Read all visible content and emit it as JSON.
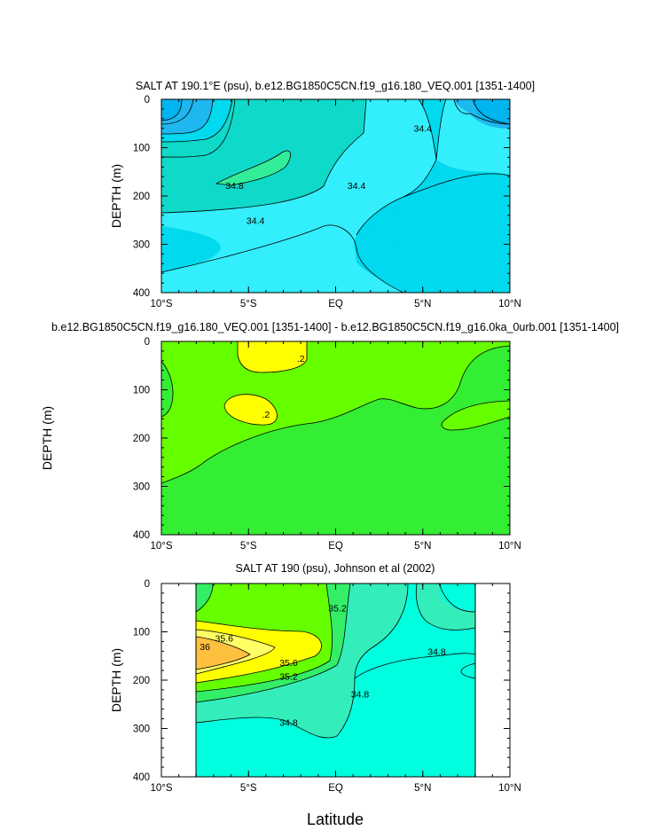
{
  "chart_data": [
    {
      "type": "contour",
      "title": "SALT AT 190.1°E (psu), b.e12.BG1850C5CN.f19_g16.180_VEQ.001 [1351-1400]",
      "xlabel": "",
      "ylabel": "DEPTH (m)",
      "xlim": [
        -10,
        10
      ],
      "ylim": [
        400,
        0
      ],
      "x_ticks": [
        -10,
        -5,
        0,
        5,
        10
      ],
      "x_tick_labels": [
        "10°S",
        "5°S",
        "EQ",
        "5°N",
        "10°N"
      ],
      "y_ticks": [
        0,
        100,
        200,
        300,
        400
      ],
      "y_tick_labels": [
        "0",
        "100",
        "200",
        "300",
        "400"
      ],
      "contour_labels": [
        {
          "text": "34.8",
          "x": -5.8,
          "y": 178
        },
        {
          "text": "34.4",
          "x": -4.6,
          "y": 250
        },
        {
          "text": "34.4",
          "x": 1.2,
          "y": 178
        },
        {
          "text": "34.4",
          "x": 5.0,
          "y": 60
        }
      ],
      "fills": [
        "#1fb7ef",
        "#33eefc",
        "#00d9ee",
        "#0fd9e6"
      ]
    },
    {
      "type": "contour",
      "title": "b.e12.BG1850C5CN.f19_g16.180_VEQ.001 [1351-1400] - b.e12.BG1850C5CN.f19_g16.0ka_0urb.001 [1351-1400]",
      "xlabel": "",
      "ylabel": "DEPTH (m)",
      "xlim": [
        -10,
        10
      ],
      "ylim": [
        400,
        0
      ],
      "x_ticks": [
        -10,
        -5,
        0,
        5,
        10
      ],
      "x_tick_labels": [
        "10°S",
        "5°S",
        "EQ",
        "5°N",
        "10°N"
      ],
      "y_ticks": [
        0,
        100,
        200,
        300,
        400
      ],
      "y_tick_labels": [
        "0",
        "100",
        "200",
        "300",
        "400"
      ],
      "contour_labels": [
        {
          "text": ".2",
          "x": -2.0,
          "y": 35
        },
        {
          "text": ".2",
          "x": -4.0,
          "y": 150
        }
      ],
      "fills": [
        "#66ff00",
        "#33ee33",
        "#ffff00"
      ]
    },
    {
      "type": "contour",
      "title": "SALT AT 190 (psu), Johnson et al (2002)",
      "xlabel": "Latitude",
      "ylabel": "DEPTH (m)",
      "xlim": [
        -10,
        10
      ],
      "ylim": [
        400,
        0
      ],
      "x_ticks": [
        -10,
        -5,
        0,
        5,
        10
      ],
      "x_tick_labels": [
        "10°S",
        "5°S",
        "EQ",
        "5°N",
        "10°N"
      ],
      "y_ticks": [
        0,
        100,
        200,
        300,
        400
      ],
      "y_tick_labels": [
        "0",
        "100",
        "200",
        "300",
        "400"
      ],
      "data_x_range": [
        -8,
        8
      ],
      "contour_labels": [
        {
          "text": "35.2",
          "x": 0.1,
          "y": 50
        },
        {
          "text": "35.6",
          "x": -6.4,
          "y": 113
        },
        {
          "text": "36",
          "x": -7.5,
          "y": 130
        },
        {
          "text": "35.6",
          "x": -2.7,
          "y": 163
        },
        {
          "text": "35.2",
          "x": -2.7,
          "y": 192
        },
        {
          "text": "34.8",
          "x": 5.8,
          "y": 140
        },
        {
          "text": "34.8",
          "x": 1.4,
          "y": 228
        },
        {
          "text": "34.8",
          "x": -2.7,
          "y": 287
        }
      ],
      "fills": [
        "#00ffde",
        "#33eebb",
        "#33ee66",
        "#66ff00",
        "#ffff00",
        "#ffff66",
        "#ffc040"
      ]
    }
  ]
}
